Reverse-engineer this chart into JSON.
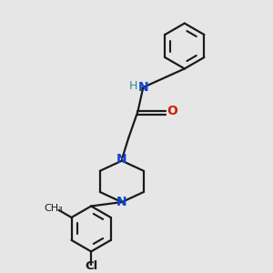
{
  "bg_color": "#e6e6e6",
  "bond_color": "#1a1a1a",
  "nitrogen_color": "#1144cc",
  "oxygen_color": "#cc2200",
  "nh_color": "#3a8888",
  "line_width": 1.6,
  "figsize": [
    3.0,
    3.0
  ],
  "dpi": 100,
  "xlim": [
    0,
    10
  ],
  "ylim": [
    0,
    10
  ]
}
